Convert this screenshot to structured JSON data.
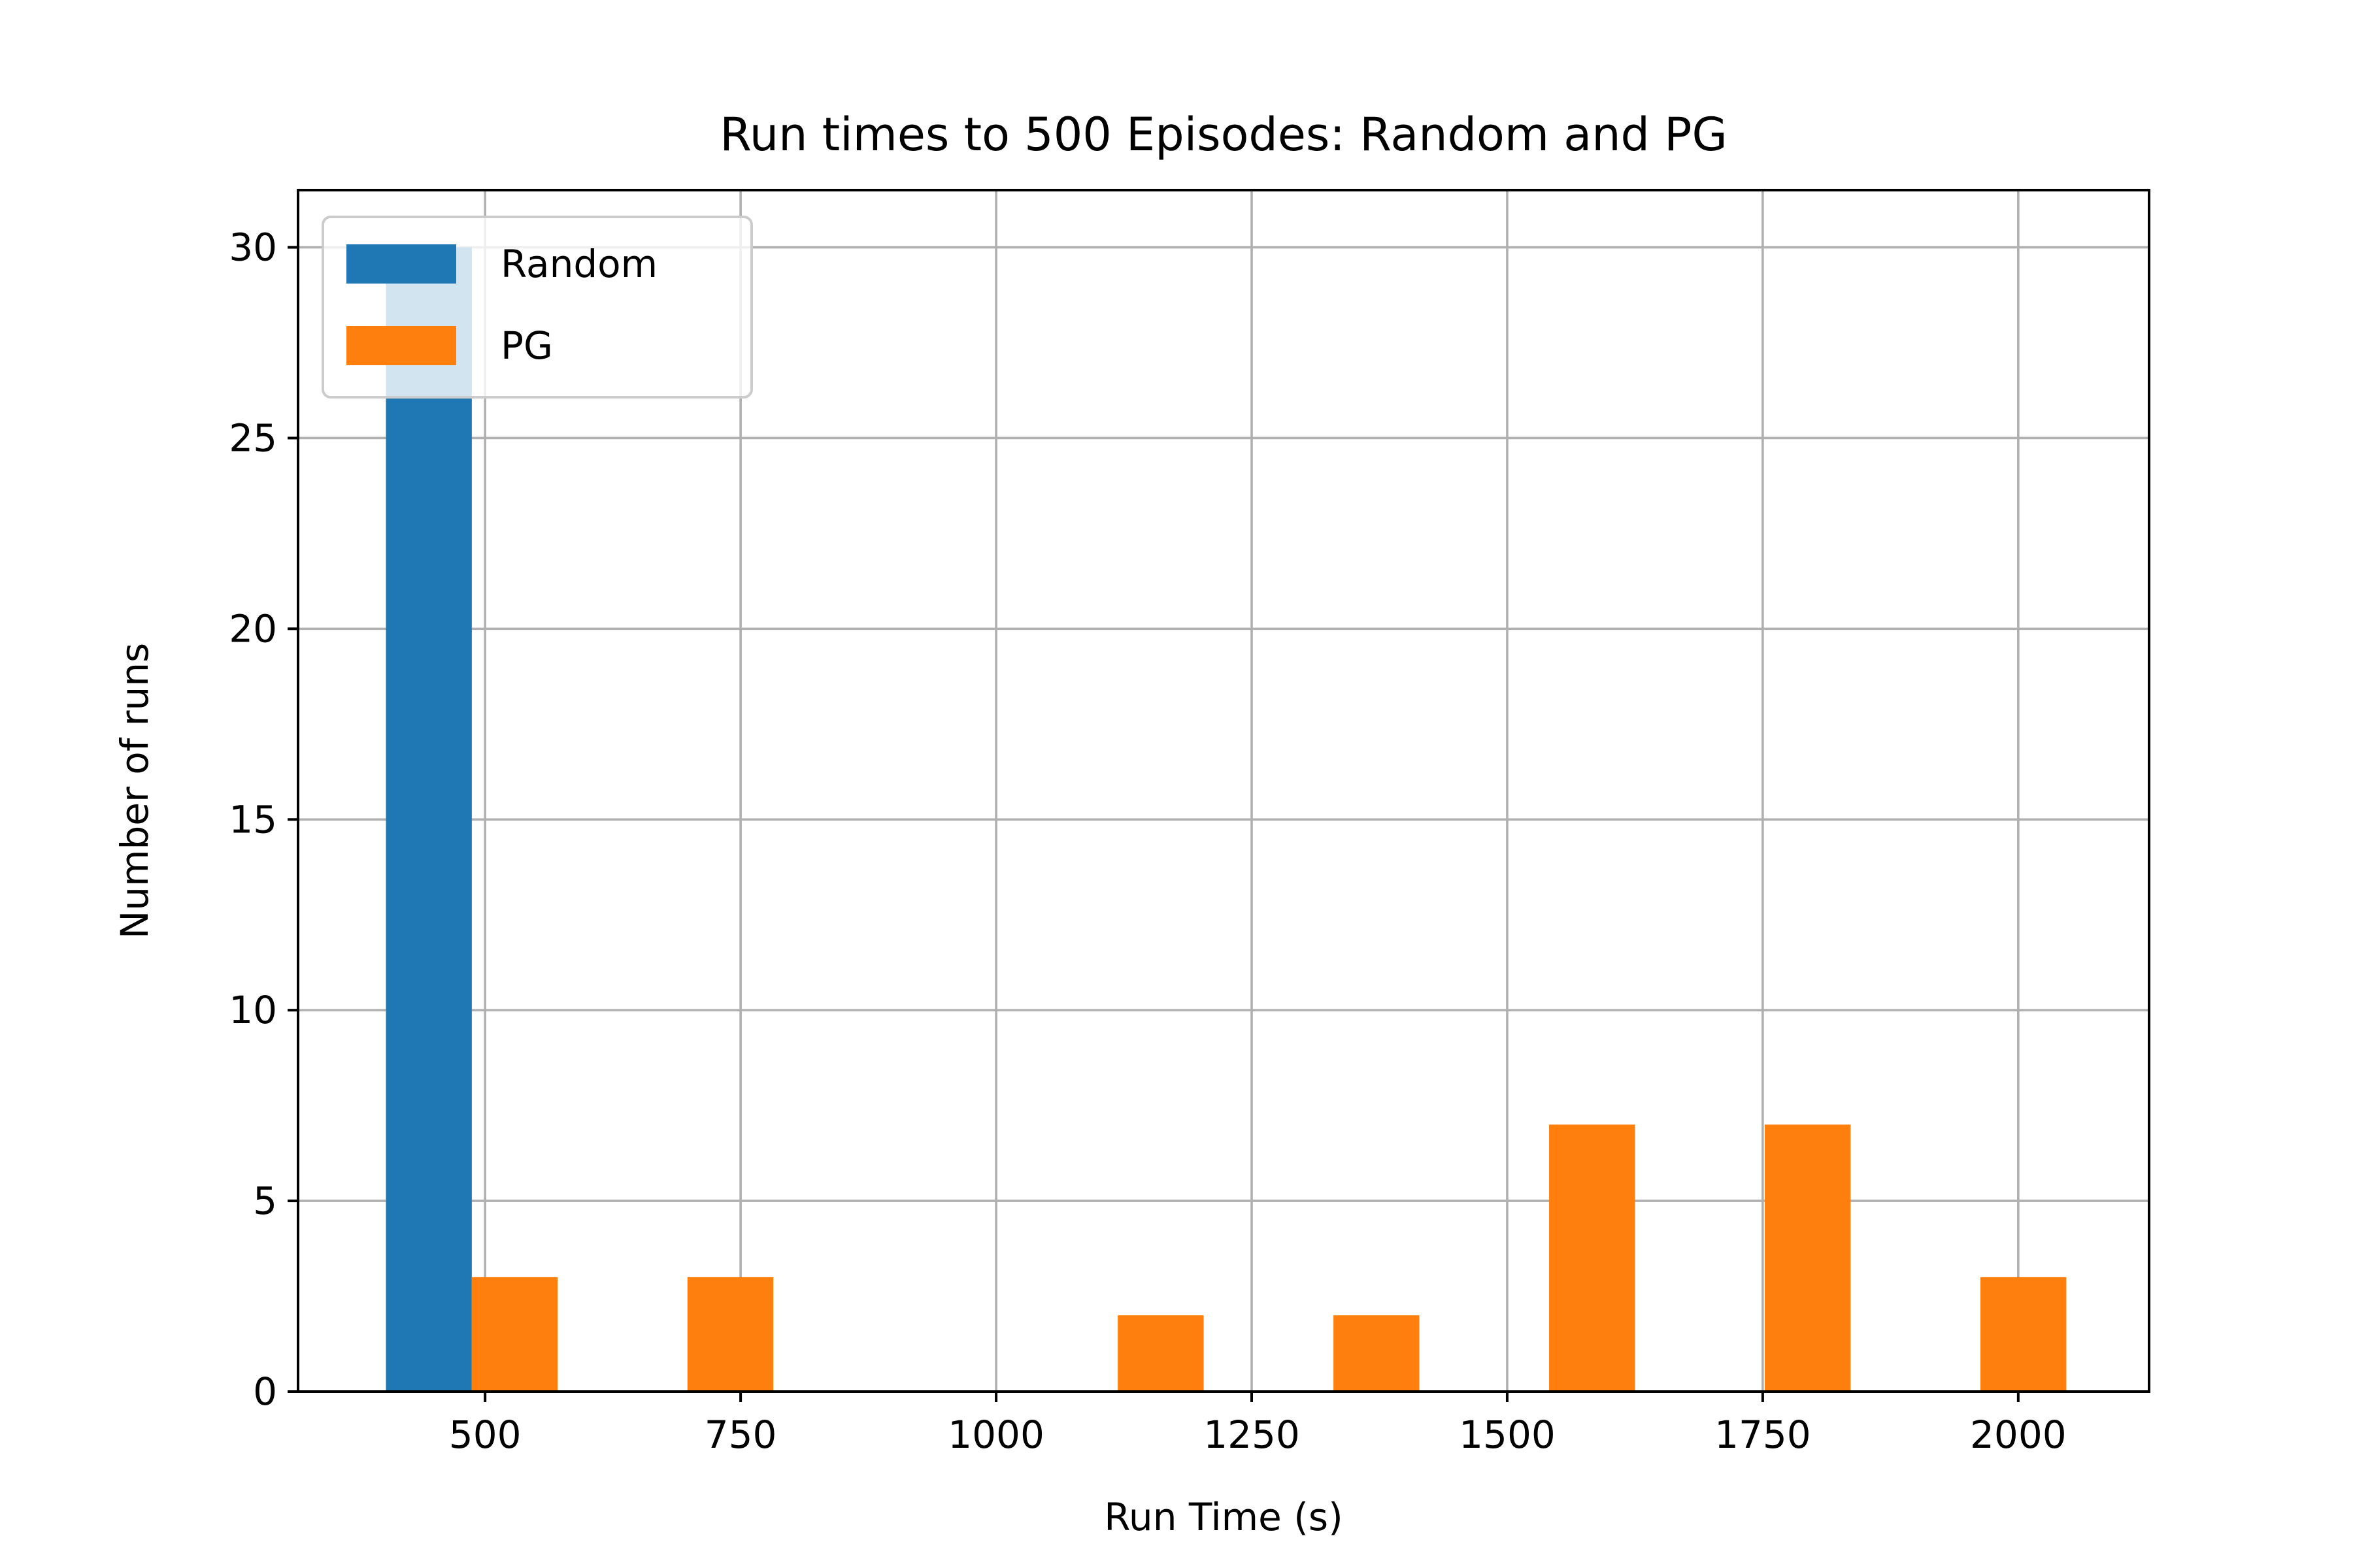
{
  "chart_data": {
    "type": "bar",
    "title": "Run times to 500 Episodes: Random and PG",
    "xlabel": "Run Time (s)",
    "ylabel": "Number of runs",
    "xlim": [
      317,
      2128
    ],
    "ylim": [
      0,
      31.5
    ],
    "xticks": [
      500,
      750,
      1000,
      1250,
      1500,
      1750,
      2000
    ],
    "xtick_labels": [
      "500",
      "750",
      "1000",
      "1250",
      "1500",
      "1750",
      "2000"
    ],
    "yticks": [
      0,
      5,
      10,
      15,
      20,
      25,
      30
    ],
    "ytick_labels": [
      "0",
      "5",
      "10",
      "15",
      "20",
      "25",
      "30"
    ],
    "grid": true,
    "legend_position": "upper-left",
    "series": [
      {
        "name": "Random",
        "color": "#1f77b4",
        "bars": [
          {
            "x0": 403,
            "x1": 487,
            "value": 30
          }
        ]
      },
      {
        "name": "PG",
        "color": "#ff7f0e",
        "bars": [
          {
            "x0": 487,
            "x1": 571,
            "value": 3
          },
          {
            "x0": 698,
            "x1": 782,
            "value": 3
          },
          {
            "x0": 1119,
            "x1": 1203,
            "value": 2
          },
          {
            "x0": 1330,
            "x1": 1414,
            "value": 2
          },
          {
            "x0": 1541,
            "x1": 1625,
            "value": 7
          },
          {
            "x0": 1752,
            "x1": 1836,
            "value": 7
          },
          {
            "x0": 1963,
            "x1": 2047,
            "value": 3
          }
        ]
      }
    ]
  }
}
